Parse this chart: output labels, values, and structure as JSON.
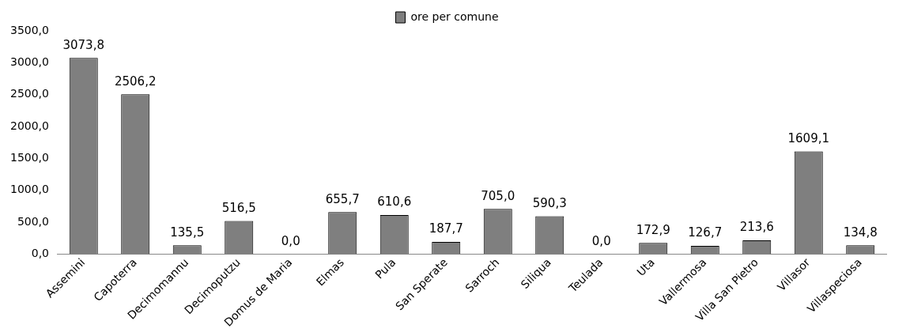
{
  "chart_data": {
    "type": "bar",
    "categories": [
      "Assemini",
      "Capoterra",
      "Decimomannu",
      "Decimoputzu",
      "Domus de Maria",
      "Elmas",
      "Pula",
      "San Sperate",
      "Sarroch",
      "Siliqua",
      "Teulada",
      "Uta",
      "Vallermosa",
      "Villa San Pietro",
      "Villasor",
      "Villaspeciosa"
    ],
    "series": [
      {
        "name": "ore per comune",
        "color": "#7f7f7f",
        "values": [
          3073.8,
          2506.2,
          135.5,
          516.5,
          0.0,
          655.7,
          610.6,
          187.7,
          705.0,
          590.3,
          0.0,
          172.9,
          126.7,
          213.6,
          1609.1,
          134.8
        ],
        "value_labels": [
          "3073,8",
          "2506,2",
          "135,5",
          "516,5",
          "0,0",
          "655,7",
          "610,6",
          "187,7",
          "705,0",
          "590,3",
          "0,0",
          "172,9",
          "126,7",
          "213,6",
          "1609,1",
          "134,8"
        ]
      }
    ],
    "ylim": [
      0,
      3500
    ],
    "yticks": [
      {
        "value": 0,
        "label": "0,0"
      },
      {
        "value": 500,
        "label": "500,0"
      },
      {
        "value": 1000,
        "label": "1000,0"
      },
      {
        "value": 1500,
        "label": "1500,0"
      },
      {
        "value": 2000,
        "label": "2000,0"
      },
      {
        "value": 2500,
        "label": "2500,0"
      },
      {
        "value": 3000,
        "label": "3000,0"
      },
      {
        "value": 3500,
        "label": "3500,0"
      }
    ],
    "grid": false,
    "legend": "top"
  }
}
